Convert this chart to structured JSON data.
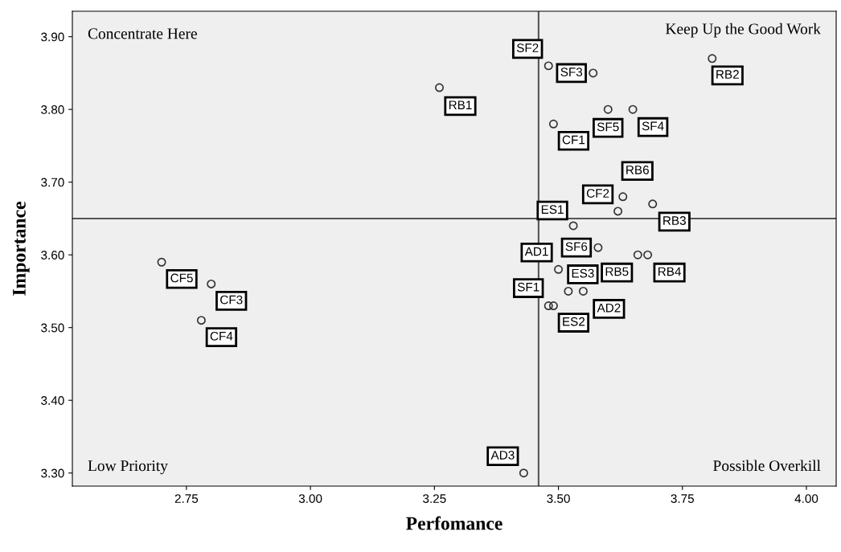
{
  "chart_data": {
    "type": "scatter",
    "xlabel": "Perfomance",
    "ylabel": "Importance",
    "x": [
      3.26,
      3.81,
      3.69,
      3.68,
      3.66,
      3.63,
      3.48,
      3.48,
      3.57,
      3.65,
      3.6,
      3.58,
      3.49,
      3.62,
      2.8,
      2.78,
      2.7,
      3.53,
      3.49,
      3.52,
      3.5,
      3.55,
      3.43
    ],
    "series": [
      {
        "color": "#333333",
        "values": [
          3.83,
          3.87,
          3.67,
          3.6,
          3.6,
          3.68,
          3.53,
          3.86,
          3.85,
          3.8,
          3.8,
          3.61,
          3.78,
          3.66,
          3.56,
          3.51,
          3.59,
          3.64,
          3.53,
          3.55,
          3.58,
          3.55,
          3.3
        ]
      }
    ],
    "marker": "circle",
    "grid": false,
    "legend": false,
    "xlim": [
      2.52,
      4.06
    ],
    "ylim": [
      3.282,
      3.935
    ],
    "xticks": [
      {
        "value": 2.75,
        "label": "2.75"
      },
      {
        "value": 3.0,
        "label": "3.00"
      },
      {
        "value": 3.25,
        "label": "3.25"
      },
      {
        "value": 3.5,
        "label": "3.50"
      },
      {
        "value": 3.75,
        "label": "3.75"
      },
      {
        "value": 4.0,
        "label": "4.00"
      }
    ],
    "yticks": [
      {
        "value": 3.3,
        "label": "3.30"
      },
      {
        "value": 3.4,
        "label": "3.40"
      },
      {
        "value": 3.5,
        "label": "3.50"
      },
      {
        "value": 3.6,
        "label": "3.60"
      },
      {
        "value": 3.7,
        "label": "3.70"
      },
      {
        "value": 3.8,
        "label": "3.80"
      },
      {
        "value": 3.9,
        "label": "3.90"
      }
    ],
    "ref_lines": [
      {
        "axis": "x",
        "value": 3.46,
        "color": "#555555"
      },
      {
        "axis": "y",
        "value": 3.65,
        "color": "#555555"
      }
    ],
    "annotations": [
      {
        "text": "RB1",
        "x": 3.26,
        "y": 3.83
      },
      {
        "text": "RB2",
        "x": 3.81,
        "y": 3.87
      },
      {
        "text": "RB3",
        "x": 3.69,
        "y": 3.67
      },
      {
        "text": "RB4",
        "x": 3.68,
        "y": 3.6
      },
      {
        "text": "RB5",
        "x": 3.66,
        "y": 3.6
      },
      {
        "text": "RB6",
        "x": 3.63,
        "y": 3.68
      },
      {
        "text": "SF1",
        "x": 3.48,
        "y": 3.53
      },
      {
        "text": "SF2",
        "x": 3.48,
        "y": 3.86
      },
      {
        "text": "SF3",
        "x": 3.57,
        "y": 3.85
      },
      {
        "text": "SF4",
        "x": 3.65,
        "y": 3.8
      },
      {
        "text": "SF5",
        "x": 3.6,
        "y": 3.8
      },
      {
        "text": "SF6",
        "x": 3.58,
        "y": 3.61
      },
      {
        "text": "CF1",
        "x": 3.49,
        "y": 3.78
      },
      {
        "text": "CF2",
        "x": 3.62,
        "y": 3.66
      },
      {
        "text": "CF3",
        "x": 2.8,
        "y": 3.56
      },
      {
        "text": "CF4",
        "x": 2.78,
        "y": 3.51
      },
      {
        "text": "CF5",
        "x": 2.7,
        "y": 3.59
      },
      {
        "text": "ES1",
        "x": 3.53,
        "y": 3.64
      },
      {
        "text": "ES2",
        "x": 3.49,
        "y": 3.53
      },
      {
        "text": "ES3",
        "x": 3.52,
        "y": 3.55
      },
      {
        "text": "AD1",
        "x": 3.5,
        "y": 3.58
      },
      {
        "text": "AD2",
        "x": 3.55,
        "y": 3.55
      },
      {
        "text": "AD3",
        "x": 3.43,
        "y": 3.3
      },
      "Concentrate Here",
      "Keep Up the Good Work",
      "Low Priority",
      "Possible Overkill"
    ]
  }
}
